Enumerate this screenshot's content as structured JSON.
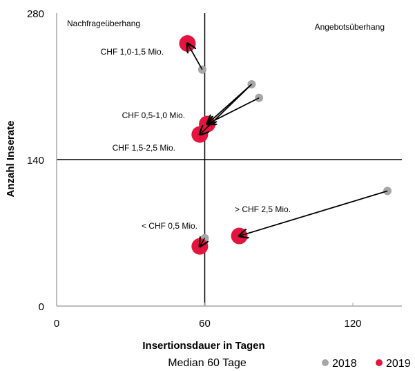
{
  "chart_data": {
    "type": "scatter",
    "xlabel": "Insertionsdauer in Tagen",
    "ylabel": "Anzahl Inserate",
    "subtitle": "Median 60 Tage",
    "xlim": [
      0,
      140
    ],
    "ylim": [
      0,
      280
    ],
    "x_ticks": [
      "0",
      "60",
      "120"
    ],
    "y_ticks": [
      "0",
      "140",
      "280"
    ],
    "median_x": 60,
    "median_y": 140,
    "quadrant_labels": {
      "top_left": "Nachfrageüberhang",
      "top_right": "Angebotsüberhang"
    },
    "legend_position": "bottom-right",
    "series": [
      {
        "name": "2018",
        "color": "#a6a6a6"
      },
      {
        "name": "2019",
        "color": "#e3153f"
      }
    ],
    "segments": [
      {
        "label": "CHF 1,0-1,5 Mio.",
        "from": [
          59,
          226
        ],
        "to": [
          53,
          251
        ]
      },
      {
        "label": "CHF 0,5-1,0 Mio.",
        "from": [
          79,
          212
        ],
        "to": [
          61,
          174
        ]
      },
      {
        "label": "",
        "from": [
          82,
          199
        ],
        "to": [
          61,
          174
        ]
      },
      {
        "label": "CHF 1,5-2,5 Mio.",
        "from": [
          79,
          212
        ],
        "to": [
          58,
          164
        ]
      },
      {
        "label": "> CHF 2,5 Mio.",
        "from": [
          134,
          110
        ],
        "to": [
          74,
          67
        ]
      },
      {
        "label": "< CHF 0,5 Mio.",
        "from": [
          60,
          65
        ],
        "to": [
          58,
          57
        ]
      }
    ]
  }
}
